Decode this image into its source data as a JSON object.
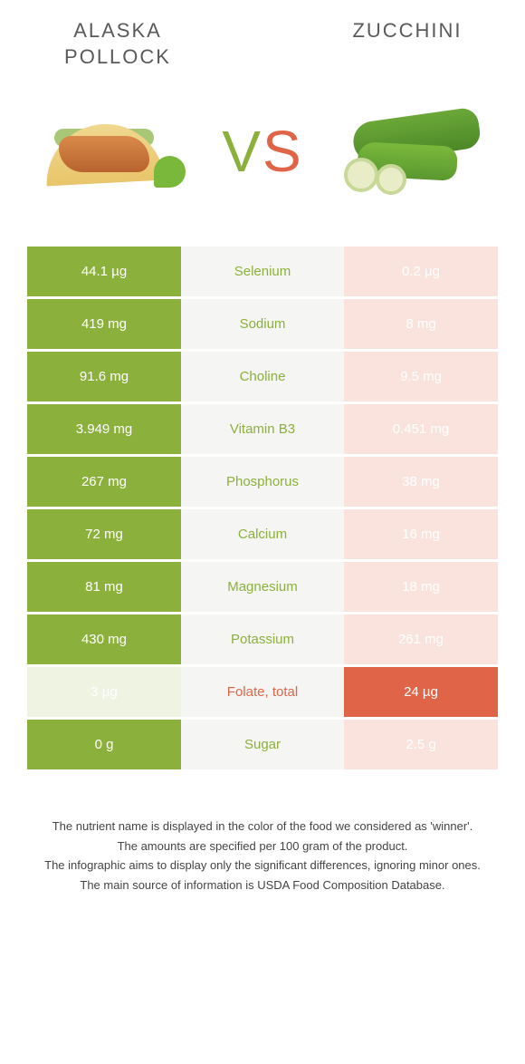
{
  "header": {
    "left_title": "Alaska pollock",
    "right_title": "Zucchini",
    "vs_v": "V",
    "vs_s": "S"
  },
  "colors": {
    "left": "#8cb03c",
    "right": "#e06548",
    "left_pale": "#eef3e2",
    "right_pale": "#fae3dd",
    "mid_bg": "#f5f5f3"
  },
  "rows": [
    {
      "nutrient": "Selenium",
      "left": "44.1 µg",
      "right": "0.2 µg",
      "winner": "left"
    },
    {
      "nutrient": "Sodium",
      "left": "419 mg",
      "right": "8 mg",
      "winner": "left"
    },
    {
      "nutrient": "Choline",
      "left": "91.6 mg",
      "right": "9.5 mg",
      "winner": "left"
    },
    {
      "nutrient": "Vitamin B3",
      "left": "3.949 mg",
      "right": "0.451 mg",
      "winner": "left"
    },
    {
      "nutrient": "Phosphorus",
      "left": "267 mg",
      "right": "38 mg",
      "winner": "left"
    },
    {
      "nutrient": "Calcium",
      "left": "72 mg",
      "right": "16 mg",
      "winner": "left"
    },
    {
      "nutrient": "Magnesium",
      "left": "81 mg",
      "right": "18 mg",
      "winner": "left"
    },
    {
      "nutrient": "Potassium",
      "left": "430 mg",
      "right": "261 mg",
      "winner": "left"
    },
    {
      "nutrient": "Folate, total",
      "left": "3 µg",
      "right": "24 µg",
      "winner": "right"
    },
    {
      "nutrient": "Sugar",
      "left": "0 g",
      "right": "2.5 g",
      "winner": "left"
    }
  ],
  "footnotes": [
    "The nutrient name is displayed in the color of the food we considered as 'winner'.",
    "The amounts are specified per 100 gram of the product.",
    "The infographic aims to display only the significant differences, ignoring minor ones.",
    "The main source of information is USDA Food Composition Database."
  ]
}
